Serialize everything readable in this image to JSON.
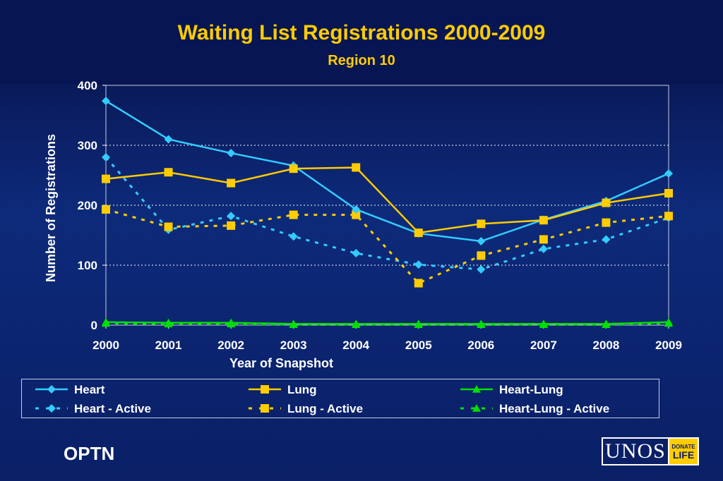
{
  "header": {
    "title": "Waiting List Registrations 2000-2009",
    "subtitle": "Region 10"
  },
  "footer": {
    "left_text": "OPTN",
    "logo_main": "UNOS",
    "logo_side_top": "DONATE",
    "logo_side_bottom": "LIFE"
  },
  "colors": {
    "heart": "#33ccff",
    "lung": "#ffcc00",
    "heart_lung": "#00e000",
    "axis_text": "#ffffff"
  },
  "chart_data": {
    "type": "line",
    "xlabel": "Year of Snapshot",
    "ylabel": "Number of Registrations",
    "ylim": [
      0,
      400
    ],
    "yticks": [
      0,
      100,
      200,
      300,
      400
    ],
    "grid": "horizontal dotted",
    "legend_position": "bottom",
    "categories": [
      "2000",
      "2001",
      "2002",
      "2003",
      "2004",
      "2005",
      "2006",
      "2007",
      "2008",
      "2009"
    ],
    "series": [
      {
        "name": "Heart",
        "style": "solid",
        "marker": "diamond",
        "color": "#33ccff",
        "values": [
          374,
          310,
          287,
          266,
          193,
          153,
          140,
          176,
          207,
          253
        ]
      },
      {
        "name": "Lung",
        "style": "solid",
        "marker": "square",
        "color": "#ffcc00",
        "values": [
          244,
          255,
          237,
          261,
          263,
          154,
          169,
          175,
          204,
          220
        ]
      },
      {
        "name": "Heart-Lung",
        "style": "solid",
        "marker": "triangle",
        "color": "#00e000",
        "values": [
          5,
          4,
          4,
          2,
          2,
          2,
          2,
          2,
          2,
          5
        ]
      },
      {
        "name": "Heart - Active",
        "style": "dashed",
        "marker": "diamond",
        "color": "#33ccff",
        "values": [
          280,
          159,
          182,
          148,
          120,
          101,
          93,
          127,
          143,
          179
        ]
      },
      {
        "name": "Lung - Active",
        "style": "dashed",
        "marker": "square",
        "color": "#ffcc00",
        "values": [
          193,
          164,
          166,
          184,
          184,
          70,
          116,
          143,
          171,
          182
        ]
      },
      {
        "name": "Heart-Lung - Active",
        "style": "dashed",
        "marker": "triangle",
        "color": "#00e000",
        "values": [
          3,
          2,
          2,
          1,
          1,
          1,
          1,
          1,
          1,
          3
        ]
      }
    ]
  }
}
